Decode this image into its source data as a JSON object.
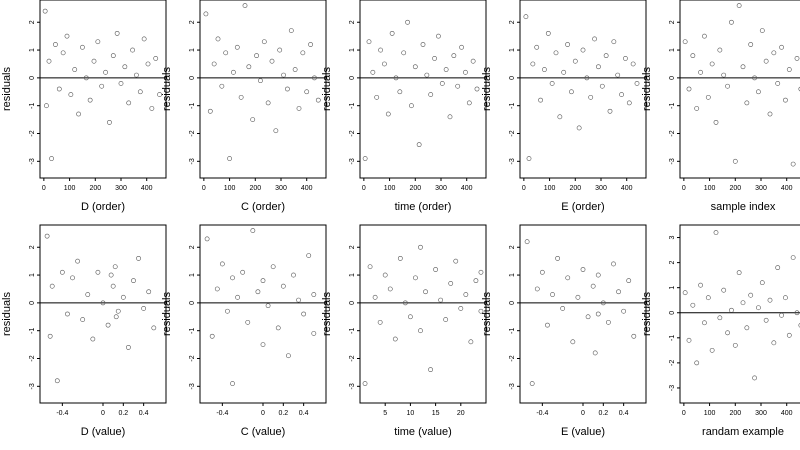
{
  "chart_data": [
    {
      "type": "scatter",
      "xlabel": "D (order)",
      "ylabel": "residuals",
      "xlim": [
        -15,
        475
      ],
      "ylim": [
        -3.6,
        2.8
      ],
      "xticks": [
        0,
        100,
        200,
        300,
        400
      ],
      "yticks": [
        -3,
        -2,
        -1,
        0,
        1,
        2
      ],
      "points": [
        [
          5,
          2.4
        ],
        [
          10,
          -1.0
        ],
        [
          20,
          0.6
        ],
        [
          30,
          -2.9
        ],
        [
          45,
          1.2
        ],
        [
          60,
          -0.4
        ],
        [
          75,
          0.9
        ],
        [
          90,
          1.5
        ],
        [
          105,
          -0.6
        ],
        [
          120,
          0.3
        ],
        [
          135,
          -1.3
        ],
        [
          150,
          1.1
        ],
        [
          165,
          0.0
        ],
        [
          180,
          -0.8
        ],
        [
          195,
          0.6
        ],
        [
          210,
          1.3
        ],
        [
          225,
          -0.3
        ],
        [
          240,
          0.2
        ],
        [
          255,
          -1.6
        ],
        [
          270,
          0.8
        ],
        [
          285,
          1.6
        ],
        [
          300,
          -0.2
        ],
        [
          315,
          0.4
        ],
        [
          330,
          -0.9
        ],
        [
          345,
          1.0
        ],
        [
          360,
          0.1
        ],
        [
          375,
          -0.5
        ],
        [
          390,
          1.4
        ],
        [
          405,
          0.5
        ],
        [
          420,
          -1.1
        ],
        [
          435,
          0.7
        ],
        [
          450,
          -0.6
        ]
      ],
      "hline": 0
    },
    {
      "type": "scatter",
      "xlabel": "C (order)",
      "ylabel": "residuals",
      "xlim": [
        -15,
        475
      ],
      "ylim": [
        -3.6,
        2.8
      ],
      "xticks": [
        0,
        100,
        200,
        300,
        400
      ],
      "yticks": [
        -3,
        -2,
        -1,
        0,
        1,
        2
      ],
      "points": [
        [
          8,
          2.3
        ],
        [
          25,
          -1.2
        ],
        [
          40,
          0.5
        ],
        [
          55,
          1.4
        ],
        [
          70,
          -0.3
        ],
        [
          85,
          0.9
        ],
        [
          100,
          -2.9
        ],
        [
          115,
          0.2
        ],
        [
          130,
          1.1
        ],
        [
          145,
          -0.7
        ],
        [
          160,
          2.6
        ],
        [
          175,
          0.4
        ],
        [
          190,
          -1.5
        ],
        [
          205,
          0.8
        ],
        [
          220,
          -0.1
        ],
        [
          235,
          1.3
        ],
        [
          250,
          -0.9
        ],
        [
          265,
          0.6
        ],
        [
          280,
          -1.9
        ],
        [
          295,
          1.0
        ],
        [
          310,
          0.1
        ],
        [
          325,
          -0.4
        ],
        [
          340,
          1.7
        ],
        [
          355,
          0.3
        ],
        [
          370,
          -1.1
        ],
        [
          385,
          0.9
        ],
        [
          400,
          -0.5
        ],
        [
          415,
          1.2
        ],
        [
          430,
          0.0
        ],
        [
          445,
          -0.8
        ]
      ],
      "hline": 0
    },
    {
      "type": "scatter",
      "xlabel": "time (order)",
      "ylabel": "residuals",
      "xlim": [
        -15,
        475
      ],
      "ylim": [
        -3.6,
        2.8
      ],
      "xticks": [
        0,
        100,
        200,
        300,
        400
      ],
      "yticks": [
        -3,
        -2,
        -1,
        0,
        1,
        2
      ],
      "points": [
        [
          5,
          -2.9
        ],
        [
          20,
          1.3
        ],
        [
          35,
          0.2
        ],
        [
          50,
          -0.7
        ],
        [
          65,
          1.0
        ],
        [
          80,
          0.5
        ],
        [
          95,
          -1.3
        ],
        [
          110,
          1.6
        ],
        [
          125,
          0.0
        ],
        [
          140,
          -0.5
        ],
        [
          155,
          0.9
        ],
        [
          170,
          2.0
        ],
        [
          185,
          -1.0
        ],
        [
          200,
          0.4
        ],
        [
          215,
          -2.4
        ],
        [
          230,
          1.2
        ],
        [
          245,
          0.1
        ],
        [
          260,
          -0.6
        ],
        [
          275,
          0.7
        ],
        [
          290,
          1.5
        ],
        [
          305,
          -0.2
        ],
        [
          320,
          0.3
        ],
        [
          335,
          -1.4
        ],
        [
          350,
          0.8
        ],
        [
          365,
          -0.3
        ],
        [
          380,
          1.1
        ],
        [
          395,
          0.2
        ],
        [
          410,
          -0.9
        ],
        [
          425,
          0.6
        ],
        [
          440,
          -0.4
        ]
      ],
      "hline": 0
    },
    {
      "type": "scatter",
      "xlabel": "E (order)",
      "ylabel": "residuals",
      "xlim": [
        -15,
        475
      ],
      "ylim": [
        -3.6,
        2.8
      ],
      "xticks": [
        0,
        100,
        200,
        300,
        400
      ],
      "yticks": [
        -3,
        -2,
        -1,
        0,
        1,
        2
      ],
      "points": [
        [
          8,
          2.2
        ],
        [
          20,
          -2.9
        ],
        [
          35,
          0.5
        ],
        [
          50,
          1.1
        ],
        [
          65,
          -0.8
        ],
        [
          80,
          0.3
        ],
        [
          95,
          1.6
        ],
        [
          110,
          -0.2
        ],
        [
          125,
          0.9
        ],
        [
          140,
          -1.4
        ],
        [
          155,
          0.2
        ],
        [
          170,
          1.2
        ],
        [
          185,
          -0.5
        ],
        [
          200,
          0.6
        ],
        [
          215,
          -1.8
        ],
        [
          230,
          1.0
        ],
        [
          245,
          0.0
        ],
        [
          260,
          -0.7
        ],
        [
          275,
          1.4
        ],
        [
          290,
          0.4
        ],
        [
          305,
          -0.3
        ],
        [
          320,
          0.8
        ],
        [
          335,
          -1.2
        ],
        [
          350,
          1.3
        ],
        [
          365,
          0.1
        ],
        [
          380,
          -0.6
        ],
        [
          395,
          0.7
        ],
        [
          410,
          -0.9
        ],
        [
          425,
          0.5
        ],
        [
          440,
          -0.2
        ]
      ],
      "hline": 0
    },
    {
      "type": "scatter",
      "xlabel": "sample index",
      "ylabel": "residuals",
      "xlim": [
        -15,
        475
      ],
      "ylim": [
        -3.6,
        2.8
      ],
      "xticks": [
        0,
        100,
        200,
        300,
        400
      ],
      "yticks": [
        -3,
        -2,
        -1,
        0,
        1,
        2
      ],
      "points": [
        [
          5,
          1.3
        ],
        [
          20,
          -0.4
        ],
        [
          35,
          0.8
        ],
        [
          50,
          -1.1
        ],
        [
          65,
          0.2
        ],
        [
          80,
          1.5
        ],
        [
          95,
          -0.7
        ],
        [
          110,
          0.5
        ],
        [
          125,
          -1.6
        ],
        [
          140,
          1.0
        ],
        [
          155,
          0.1
        ],
        [
          170,
          -0.3
        ],
        [
          185,
          2.0
        ],
        [
          200,
          -3.0
        ],
        [
          215,
          2.6
        ],
        [
          230,
          0.4
        ],
        [
          245,
          -0.9
        ],
        [
          260,
          1.2
        ],
        [
          275,
          0.0
        ],
        [
          290,
          -0.5
        ],
        [
          305,
          1.7
        ],
        [
          320,
          0.6
        ],
        [
          335,
          -1.3
        ],
        [
          350,
          0.9
        ],
        [
          365,
          -0.2
        ],
        [
          380,
          1.1
        ],
        [
          395,
          -0.8
        ],
        [
          410,
          0.3
        ],
        [
          425,
          -3.1
        ],
        [
          440,
          0.7
        ],
        [
          455,
          -0.4
        ]
      ],
      "hline": 0
    },
    {
      "type": "scatter",
      "xlabel": "D (value)",
      "ylabel": "residuals",
      "xlim": [
        -0.62,
        0.62
      ],
      "ylim": [
        -3.6,
        2.8
      ],
      "xticks": [
        -0.4,
        0,
        0.2,
        0.4
      ],
      "yticks": [
        -3,
        -2,
        -1,
        0,
        1,
        2
      ],
      "points": [
        [
          -0.55,
          2.4
        ],
        [
          -0.52,
          -1.2
        ],
        [
          -0.5,
          0.6
        ],
        [
          -0.45,
          -2.8
        ],
        [
          -0.4,
          1.1
        ],
        [
          -0.35,
          -0.4
        ],
        [
          -0.3,
          0.9
        ],
        [
          -0.25,
          1.5
        ],
        [
          -0.2,
          -0.6
        ],
        [
          -0.15,
          0.3
        ],
        [
          -0.1,
          -1.3
        ],
        [
          -0.05,
          1.1
        ],
        [
          0.0,
          0.0
        ],
        [
          0.05,
          -0.8
        ],
        [
          0.1,
          0.6
        ],
        [
          0.12,
          1.3
        ],
        [
          0.15,
          -0.3
        ],
        [
          0.2,
          0.2
        ],
        [
          0.25,
          -1.6
        ],
        [
          0.3,
          0.8
        ],
        [
          0.35,
          1.6
        ],
        [
          0.4,
          -0.2
        ],
        [
          0.45,
          0.4
        ],
        [
          0.5,
          -0.9
        ],
        [
          0.08,
          1.0
        ],
        [
          0.13,
          -0.5
        ]
      ],
      "hline": 0
    },
    {
      "type": "scatter",
      "xlabel": "C (value)",
      "ylabel": "residuals",
      "xlim": [
        -0.62,
        0.62
      ],
      "ylim": [
        -3.6,
        2.8
      ],
      "xticks": [
        -0.4,
        0,
        0.2,
        0.4
      ],
      "yticks": [
        -3,
        -2,
        -1,
        0,
        1,
        2
      ],
      "points": [
        [
          -0.55,
          2.3
        ],
        [
          -0.5,
          -1.2
        ],
        [
          -0.45,
          0.5
        ],
        [
          -0.4,
          1.4
        ],
        [
          -0.35,
          -0.3
        ],
        [
          -0.3,
          0.9
        ],
        [
          -0.3,
          -2.9
        ],
        [
          -0.25,
          0.2
        ],
        [
          -0.2,
          1.1
        ],
        [
          -0.15,
          -0.7
        ],
        [
          -0.1,
          2.6
        ],
        [
          -0.05,
          0.4
        ],
        [
          0.0,
          -1.5
        ],
        [
          0.0,
          0.8
        ],
        [
          0.05,
          -0.1
        ],
        [
          0.1,
          1.3
        ],
        [
          0.15,
          -0.9
        ],
        [
          0.2,
          0.6
        ],
        [
          0.25,
          -1.9
        ],
        [
          0.3,
          1.0
        ],
        [
          0.35,
          0.1
        ],
        [
          0.4,
          -0.4
        ],
        [
          0.45,
          1.7
        ],
        [
          0.5,
          0.3
        ],
        [
          0.5,
          -1.1
        ]
      ],
      "hline": 0
    },
    {
      "type": "scatter",
      "xlabel": "time (value)",
      "ylabel": "residuals",
      "xlim": [
        0,
        25
      ],
      "ylim": [
        -3.6,
        2.8
      ],
      "xticks": [
        5,
        10,
        15,
        20
      ],
      "yticks": [
        -3,
        -2,
        -1,
        0,
        1,
        2
      ],
      "points": [
        [
          1,
          -2.9
        ],
        [
          2,
          1.3
        ],
        [
          3,
          0.2
        ],
        [
          4,
          -0.7
        ],
        [
          5,
          1.0
        ],
        [
          6,
          0.5
        ],
        [
          7,
          -1.3
        ],
        [
          8,
          1.6
        ],
        [
          9,
          0.0
        ],
        [
          10,
          -0.5
        ],
        [
          11,
          0.9
        ],
        [
          12,
          2.0
        ],
        [
          12,
          -1.0
        ],
        [
          13,
          0.4
        ],
        [
          14,
          -2.4
        ],
        [
          15,
          1.2
        ],
        [
          16,
          0.1
        ],
        [
          17,
          -0.6
        ],
        [
          18,
          0.7
        ],
        [
          19,
          1.5
        ],
        [
          20,
          -0.2
        ],
        [
          21,
          0.3
        ],
        [
          22,
          -1.4
        ],
        [
          23,
          0.8
        ],
        [
          24,
          -0.3
        ],
        [
          24,
          1.1
        ]
      ],
      "hline": 0
    },
    {
      "type": "scatter",
      "xlabel": "E (value)",
      "ylabel": "residuals",
      "xlim": [
        -0.62,
        0.62
      ],
      "ylim": [
        -3.6,
        2.8
      ],
      "xticks": [
        -0.4,
        0,
        0.2,
        0.4
      ],
      "yticks": [
        -3,
        -2,
        -1,
        0,
        1,
        2
      ],
      "points": [
        [
          -0.55,
          2.2
        ],
        [
          -0.5,
          -2.9
        ],
        [
          -0.45,
          0.5
        ],
        [
          -0.4,
          1.1
        ],
        [
          -0.35,
          -0.8
        ],
        [
          -0.3,
          0.3
        ],
        [
          -0.25,
          1.6
        ],
        [
          -0.2,
          -0.2
        ],
        [
          -0.15,
          0.9
        ],
        [
          -0.1,
          -1.4
        ],
        [
          -0.05,
          0.2
        ],
        [
          0.0,
          1.2
        ],
        [
          0.05,
          -0.5
        ],
        [
          0.1,
          0.6
        ],
        [
          0.12,
          -1.8
        ],
        [
          0.15,
          1.0
        ],
        [
          0.2,
          0.0
        ],
        [
          0.25,
          -0.7
        ],
        [
          0.3,
          1.4
        ],
        [
          0.35,
          0.4
        ],
        [
          0.4,
          -0.3
        ],
        [
          0.45,
          0.8
        ],
        [
          0.5,
          -1.2
        ],
        [
          0.15,
          -0.4
        ]
      ],
      "hline": 0
    },
    {
      "type": "scatter",
      "xlabel": "randam example",
      "ylabel": "residuals",
      "xlim": [
        -15,
        475
      ],
      "ylim": [
        -3.6,
        3.5
      ],
      "xticks": [
        0,
        100,
        200,
        300,
        400
      ],
      "yticks": [
        -3,
        -2,
        -1,
        0,
        1,
        2,
        3
      ],
      "points": [
        [
          5,
          0.8
        ],
        [
          20,
          -1.1
        ],
        [
          35,
          0.3
        ],
        [
          50,
          -2.0
        ],
        [
          65,
          1.1
        ],
        [
          80,
          -0.4
        ],
        [
          95,
          0.6
        ],
        [
          110,
          -1.5
        ],
        [
          125,
          3.2
        ],
        [
          140,
          -0.2
        ],
        [
          155,
          0.9
        ],
        [
          170,
          -0.8
        ],
        [
          185,
          0.1
        ],
        [
          200,
          -1.3
        ],
        [
          215,
          1.6
        ],
        [
          230,
          0.4
        ],
        [
          245,
          -0.6
        ],
        [
          260,
          0.7
        ],
        [
          275,
          -2.6
        ],
        [
          290,
          0.2
        ],
        [
          305,
          1.2
        ],
        [
          320,
          -0.3
        ],
        [
          335,
          0.5
        ],
        [
          350,
          -1.2
        ],
        [
          365,
          1.8
        ],
        [
          380,
          -0.1
        ],
        [
          395,
          0.6
        ],
        [
          410,
          -0.9
        ],
        [
          425,
          2.2
        ],
        [
          440,
          0.0
        ],
        [
          455,
          -0.5
        ]
      ],
      "hline": 0
    }
  ]
}
